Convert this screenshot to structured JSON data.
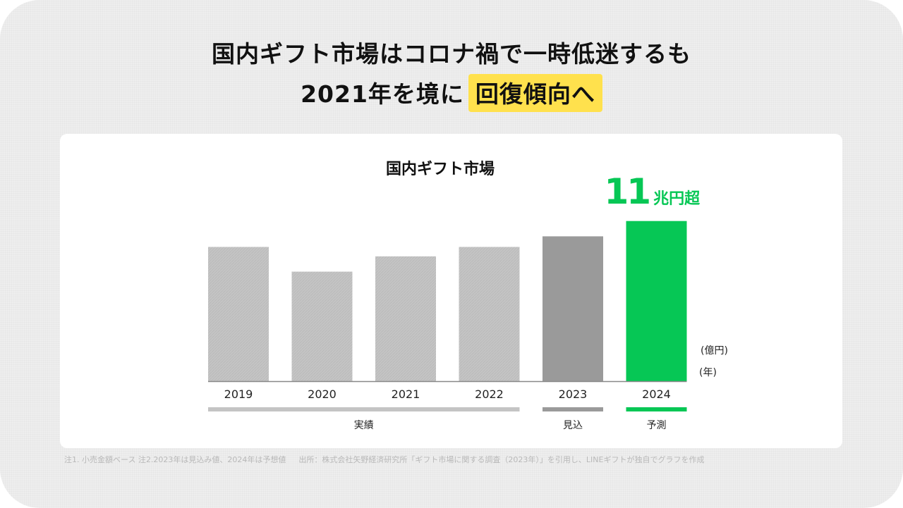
{
  "headline": {
    "line1": "国内ギフト市場はコロナ禍で一時低迷するも",
    "line2_prefix": "2021年を境に",
    "line2_highlight": "回復傾向へ"
  },
  "colors": {
    "actual": "#c4c4c4",
    "estimate": "#9a9a9a",
    "forecast": "#06c755",
    "highlight": "#ffe14d",
    "axis": "#888888"
  },
  "chart_data": {
    "type": "bar",
    "title": "国内ギフト市場",
    "categories": [
      "2019",
      "2020",
      "2021",
      "2022",
      "2023",
      "2024"
    ],
    "values": [
      102000,
      91500,
      98000,
      102000,
      106500,
      113000
    ],
    "bar_kinds": [
      "actual",
      "actual",
      "actual",
      "actual",
      "estimate",
      "forecast"
    ],
    "ylim": [
      45000,
      115000
    ],
    "yunit": "(億円)",
    "xunit": "(年)",
    "grid": false,
    "legend": "none",
    "callout": {
      "number": "11",
      "suffix": "兆円超"
    },
    "groups": [
      {
        "label": "実績",
        "from": 0,
        "to": 3,
        "kind": "actual"
      },
      {
        "label": "見込",
        "from": 4,
        "to": 4,
        "kind": "estimate"
      },
      {
        "label": "予測",
        "from": 5,
        "to": 5,
        "kind": "forecast"
      }
    ]
  },
  "footnote": {
    "notes": "注1. 小売金額ベース 注2.2023年は見込み値、2024年は予想値",
    "source": "出所：株式会社矢野経済研究所「ギフト市場に関する調査（2023年）」を引用し、LINEギフトが独自でグラフを作成"
  }
}
